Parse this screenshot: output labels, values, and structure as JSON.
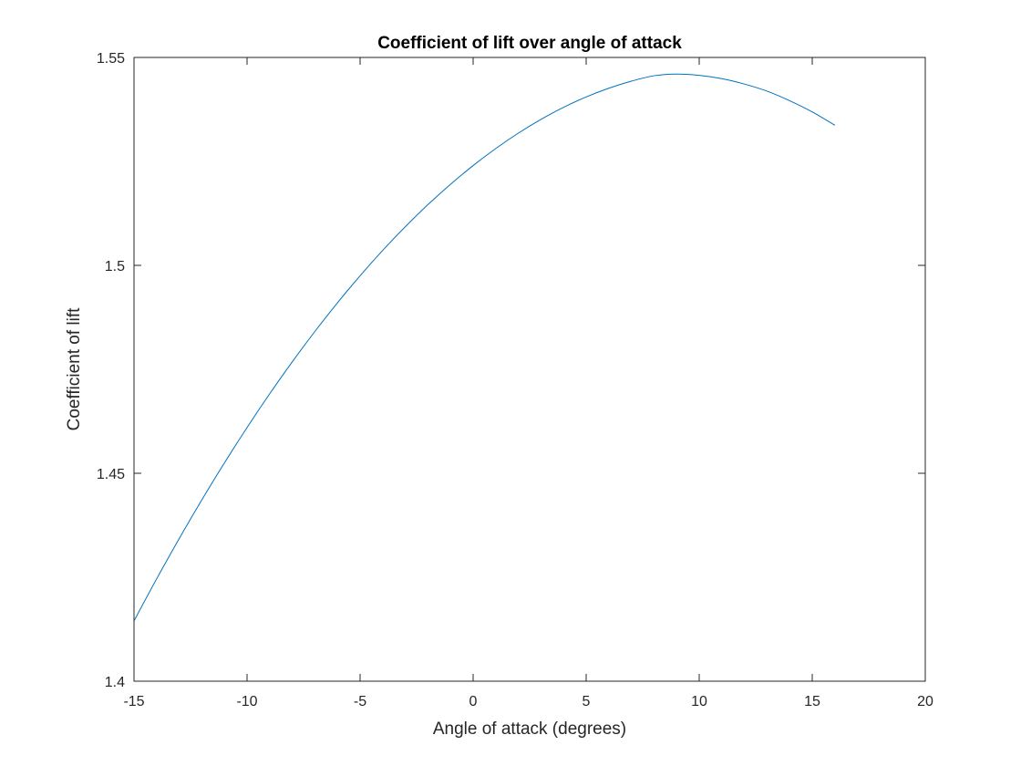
{
  "chart_data": {
    "type": "line",
    "title": "Coefficient of lift over angle of attack",
    "xlabel": "Angle of attack (degrees)",
    "ylabel": "Coefficient of lift",
    "xlim": [
      -15,
      20
    ],
    "ylim": [
      1.4,
      1.55
    ],
    "xticks": [
      -15,
      -10,
      -5,
      0,
      5,
      10,
      15,
      20
    ],
    "xtick_labels": [
      "-15",
      "-10",
      "-5",
      "0",
      "5",
      "10",
      "15",
      "20"
    ],
    "yticks": [
      1.4,
      1.45,
      1.5,
      1.55
    ],
    "ytick_labels": [
      "1.4",
      "1.45",
      "1.5",
      "1.55"
    ],
    "grid": false,
    "box": true,
    "series": [
      {
        "color": "#0072BD",
        "x": [
          -15,
          -14,
          -13,
          -12,
          -11,
          -10,
          -9,
          -8,
          -7,
          -6,
          -5,
          -4,
          -3,
          -2,
          -1,
          0,
          1,
          2,
          3,
          4,
          5,
          6,
          7,
          8,
          9,
          10,
          11,
          12,
          13,
          14,
          15,
          16
        ],
        "y": [
          1.4145,
          1.4246,
          1.4343,
          1.4436,
          1.4525,
          1.461,
          1.4691,
          1.4768,
          1.4841,
          1.491,
          1.4975,
          1.5036,
          1.5093,
          1.5146,
          1.5195,
          1.524,
          1.5281,
          1.5318,
          1.5351,
          1.538,
          1.5405,
          1.5426,
          1.5443,
          1.5456,
          1.546,
          1.5457,
          1.5449,
          1.5436,
          1.5419,
          1.5396,
          1.5369,
          1.5337
        ]
      }
    ]
  }
}
